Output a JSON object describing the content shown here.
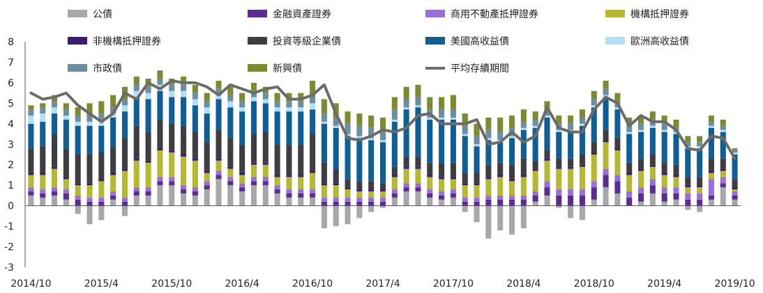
{
  "chart_data": {
    "type": "bar",
    "stacked": true,
    "title": "",
    "xlabel": "",
    "ylabel": "",
    "ylim": [
      -3,
      8
    ],
    "yticks": [
      -3,
      -2,
      -1,
      0,
      1,
      2,
      3,
      4,
      5,
      6,
      7,
      8
    ],
    "grid": false,
    "legend_placement": "top",
    "xtick_labels": [
      {
        "index": 0,
        "label": "2014/10"
      },
      {
        "index": 6,
        "label": "2015/4"
      },
      {
        "index": 12,
        "label": "2015/10"
      },
      {
        "index": 18,
        "label": "2016/4"
      },
      {
        "index": 24,
        "label": "2016/10"
      },
      {
        "index": 30,
        "label": "2017/4"
      },
      {
        "index": 36,
        "label": "2017/10"
      },
      {
        "index": 42,
        "label": "2018/4"
      },
      {
        "index": 48,
        "label": "2018/10"
      },
      {
        "index": 54,
        "label": "2019/4"
      },
      {
        "index": 60,
        "label": "2019/10"
      }
    ],
    "series": [
      {
        "name": "公債",
        "color": "#a6a8ab",
        "values": [
          0.5,
          0.4,
          0.5,
          0.3,
          -0.4,
          -0.9,
          -0.7,
          0.3,
          -0.5,
          0.5,
          0.5,
          1.0,
          1.0,
          0.6,
          0.5,
          0.8,
          1.3,
          1.0,
          0.7,
          1.0,
          1.0,
          0.6,
          0.4,
          0.4,
          0.4,
          -1.1,
          -1.0,
          -0.9,
          -0.6,
          -0.3,
          -0.1,
          0.4,
          0.7,
          0.7,
          0.4,
          0.3,
          0.4,
          -0.3,
          -0.8,
          -1.6,
          -1.2,
          -1.4,
          -1.1,
          0.2,
          0.5,
          -0.1,
          -0.6,
          -0.7,
          0.3,
          0.9,
          0.6,
          0.0,
          0.2,
          0.6,
          0.2,
          0.3,
          -0.2,
          -0.3,
          0.3,
          0.9,
          0.3
        ]
      },
      {
        "name": "金融資產證券",
        "color": "#5b2d8e",
        "values": [
          0.2,
          0.2,
          0.2,
          0.3,
          0.3,
          0.2,
          0.2,
          0.2,
          0.2,
          0.2,
          0.2,
          0.2,
          0.2,
          0.2,
          0.2,
          0.2,
          0.2,
          0.2,
          0.2,
          0.2,
          0.2,
          0.2,
          0.2,
          0.2,
          0.2,
          0.2,
          0.2,
          0.2,
          0.2,
          0.2,
          0.2,
          0.2,
          0.2,
          0.2,
          0.2,
          0.2,
          0.2,
          0.2,
          0.2,
          0.3,
          0.3,
          0.3,
          0.3,
          0.3,
          0.4,
          0.5,
          0.5,
          0.5,
          0.6,
          0.6,
          0.6,
          0.4,
          0.4,
          0.4,
          0.4,
          0.3,
          0.3,
          0.3,
          0.2,
          0.2,
          0.2
        ]
      },
      {
        "name": "商用不動產抵押證券",
        "color": "#9b6fd6",
        "values": [
          0.2,
          0.2,
          0.2,
          0.2,
          0.2,
          0.2,
          0.2,
          0.2,
          0.2,
          0.2,
          0.2,
          0.2,
          0.2,
          0.2,
          0.2,
          0.2,
          0.2,
          0.2,
          0.2,
          0.2,
          0.2,
          0.2,
          0.2,
          0.2,
          0.2,
          0.2,
          0.2,
          0.2,
          0.2,
          0.2,
          0.2,
          0.2,
          0.2,
          0.2,
          0.2,
          0.2,
          0.2,
          0.2,
          0.2,
          0.2,
          0.2,
          0.2,
          0.2,
          0.2,
          0.3,
          0.3,
          0.3,
          0.3,
          0.3,
          0.3,
          0.3,
          0.3,
          0.3,
          0.3,
          0.3,
          0.3,
          0.3,
          0.3,
          0.8,
          0.3,
          0.2
        ]
      },
      {
        "name": "機構抵押證券",
        "color": "#b5b833",
        "values": [
          0.6,
          0.7,
          0.9,
          0.5,
          0.5,
          0.6,
          0.8,
          0.8,
          1.3,
          1.3,
          1.2,
          1.3,
          1.2,
          1.4,
          1.3,
          0.4,
          0.5,
          0.4,
          0.4,
          0.6,
          0.6,
          0.4,
          0.6,
          0.6,
          0.8,
          0.6,
          0.6,
          0.4,
          0.3,
          0.3,
          0.3,
          0.6,
          0.7,
          0.7,
          0.6,
          0.6,
          0.5,
          0.6,
          0.6,
          0.8,
          0.9,
          0.7,
          0.9,
          1.0,
          1.0,
          1.0,
          1.0,
          1.1,
          1.3,
          1.3,
          1.2,
          0.8,
          0.8,
          0.6,
          0.6,
          0.5,
          0.3,
          0.3,
          0.3,
          0.3,
          0.1
        ]
      },
      {
        "name": "非機構抵押證券",
        "color": "#3d1a6e",
        "values": [
          0.1,
          0.1,
          0.1,
          0.1,
          0.1,
          0.1,
          0.1,
          0.1,
          0.1,
          0.1,
          0.1,
          0.1,
          0.1,
          0.1,
          0.1,
          0.1,
          0.1,
          0.1,
          0.1,
          0.1,
          0.1,
          0.1,
          0.1,
          0.1,
          0.1,
          0.1,
          0.1,
          0.1,
          0.1,
          0.1,
          0.1,
          0.1,
          0.1,
          0.1,
          0.1,
          0.1,
          0.1,
          0.1,
          0.1,
          0.1,
          0.1,
          0.1,
          0.1,
          0.1,
          0.1,
          0.1,
          0.1,
          0.1,
          0.1,
          0.1,
          0.1,
          0.1,
          0.1,
          0.1,
          0.1,
          0.1,
          0.1,
          0.1,
          0.1,
          0.1,
          0.1
        ]
      },
      {
        "name": "投資等級企業債",
        "color": "#3d3d42",
        "values": [
          1.2,
          1.3,
          1.6,
          1.4,
          1.4,
          1.4,
          1.3,
          1.3,
          1.5,
          1.6,
          1.4,
          1.4,
          1.3,
          1.4,
          1.3,
          1.4,
          1.4,
          1.4,
          1.4,
          1.4,
          1.5,
          1.5,
          1.5,
          1.5,
          1.8,
          1.0,
          0.7,
          0.4,
          0.4,
          0.4,
          0.3,
          0.4,
          0.5,
          0.5,
          0.6,
          0.7,
          0.7,
          0.5,
          0.5,
          0.6,
          0.6,
          0.7,
          0.8,
          0.4,
          0.4,
          0.4,
          0.4,
          0.5,
          0.5,
          0.5,
          0.5,
          0.5,
          0.5,
          0.5,
          0.5,
          0.5,
          0.4,
          0.4,
          0.6,
          0.5,
          0.4
        ]
      },
      {
        "name": "美國高收益債",
        "color": "#0f5f96",
        "values": [
          1.2,
          1.2,
          1.0,
          1.4,
          1.4,
          1.4,
          1.3,
          1.4,
          1.3,
          1.4,
          1.6,
          1.4,
          1.3,
          1.4,
          1.3,
          1.4,
          1.5,
          1.5,
          1.6,
          1.6,
          1.4,
          1.6,
          1.6,
          1.6,
          1.2,
          1.9,
          2.0,
          2.1,
          2.1,
          2.0,
          2.0,
          2.2,
          2.3,
          2.4,
          2.1,
          2.1,
          2.1,
          1.8,
          1.3,
          1.2,
          1.0,
          1.3,
          1.4,
          1.6,
          1.6,
          1.3,
          1.3,
          1.4,
          1.7,
          1.6,
          1.4,
          1.4,
          1.3,
          1.3,
          1.5,
          1.5,
          1.4,
          1.4,
          1.5,
          1.3,
          1.2
        ]
      },
      {
        "name": "歐洲高收益債",
        "color": "#b3dff5",
        "values": [
          0.4,
          0.4,
          0.3,
          0.2,
          0.2,
          0.2,
          0.3,
          0.2,
          0.3,
          0.3,
          0.3,
          0.3,
          0.3,
          0.3,
          0.3,
          0.3,
          0.2,
          0.3,
          0.2,
          0.2,
          0.2,
          0.2,
          0.2,
          0.2,
          0.3,
          0.1,
          0.1,
          0.1,
          0.1,
          0.1,
          0.1,
          0.1,
          0.1,
          0.1,
          0.1,
          0.1,
          0.1,
          0.1,
          0.1,
          0.1,
          0.1,
          0.1,
          0.1,
          0.1,
          0.1,
          0.1,
          0.1,
          0.1,
          0.1,
          0.1,
          0.1,
          0.1,
          0.1,
          0.1,
          0.1,
          0.1,
          0.1,
          0.1,
          0.1,
          0.1,
          0.1
        ]
      },
      {
        "name": "市政債",
        "color": "#6b8fa0",
        "values": [
          0.3,
          0.3,
          0.3,
          0.3,
          0.3,
          0.3,
          0.3,
          0.3,
          0.3,
          0.3,
          0.3,
          0.3,
          0.3,
          0.3,
          0.3,
          0.3,
          0.3,
          0.3,
          0.3,
          0.3,
          0.3,
          0.3,
          0.3,
          0.3,
          0.3,
          0.4,
          0.4,
          0.5,
          0.5,
          0.5,
          0.5,
          0.5,
          0.4,
          0.4,
          0.4,
          0.4,
          0.4,
          0.4,
          0.4,
          0.4,
          0.4,
          0.4,
          0.3,
          0.3,
          0.3,
          0.3,
          0.3,
          0.3,
          0.3,
          0.3,
          0.3,
          0.3,
          0.3,
          0.3,
          0.3,
          0.2,
          0.2,
          0.2,
          0.2,
          0.2,
          0.1
        ]
      },
      {
        "name": "新興債",
        "color": "#7d8a32",
        "values": [
          0.2,
          0.2,
          0.3,
          0.3,
          0.4,
          0.6,
          0.6,
          0.6,
          0.6,
          0.4,
          0.4,
          0.4,
          0.3,
          0.4,
          0.4,
          0.4,
          0.4,
          0.4,
          0.4,
          0.4,
          0.3,
          0.4,
          0.4,
          0.4,
          0.8,
          0.7,
          0.7,
          0.6,
          0.6,
          0.6,
          0.6,
          0.6,
          0.6,
          0.6,
          0.6,
          0.6,
          0.7,
          0.6,
          0.6,
          0.6,
          0.7,
          0.6,
          0.6,
          0.4,
          0.4,
          0.4,
          0.4,
          0.4,
          0.4,
          0.4,
          0.4,
          0.4,
          0.4,
          0.4,
          0.4,
          0.4,
          0.3,
          0.3,
          0.3,
          0.3,
          0.1
        ]
      },
      {
        "name": "平均存續期間",
        "color": "#6d6a6a",
        "type": "line",
        "values": [
          5.5,
          5.2,
          5.3,
          5.5,
          4.9,
          4.5,
          4.1,
          4.5,
          5.5,
          5.2,
          6.0,
          5.7,
          6.1,
          6.0,
          6.0,
          5.8,
          5.4,
          5.9,
          5.7,
          5.5,
          5.7,
          5.8,
          5.2,
          5.2,
          5.4,
          5.9,
          4.5,
          3.3,
          3.2,
          3.4,
          3.7,
          3.6,
          3.8,
          4.4,
          4.5,
          4.0,
          4.0,
          4.0,
          4.2,
          3.0,
          3.1,
          3.6,
          3.1,
          3.4,
          4.8,
          3.8,
          3.6,
          3.6,
          4.7,
          5.3,
          5.0,
          3.9,
          4.4,
          4.1,
          4.1,
          3.7,
          2.8,
          2.7,
          3.4,
          3.3,
          2.3
        ]
      }
    ]
  }
}
